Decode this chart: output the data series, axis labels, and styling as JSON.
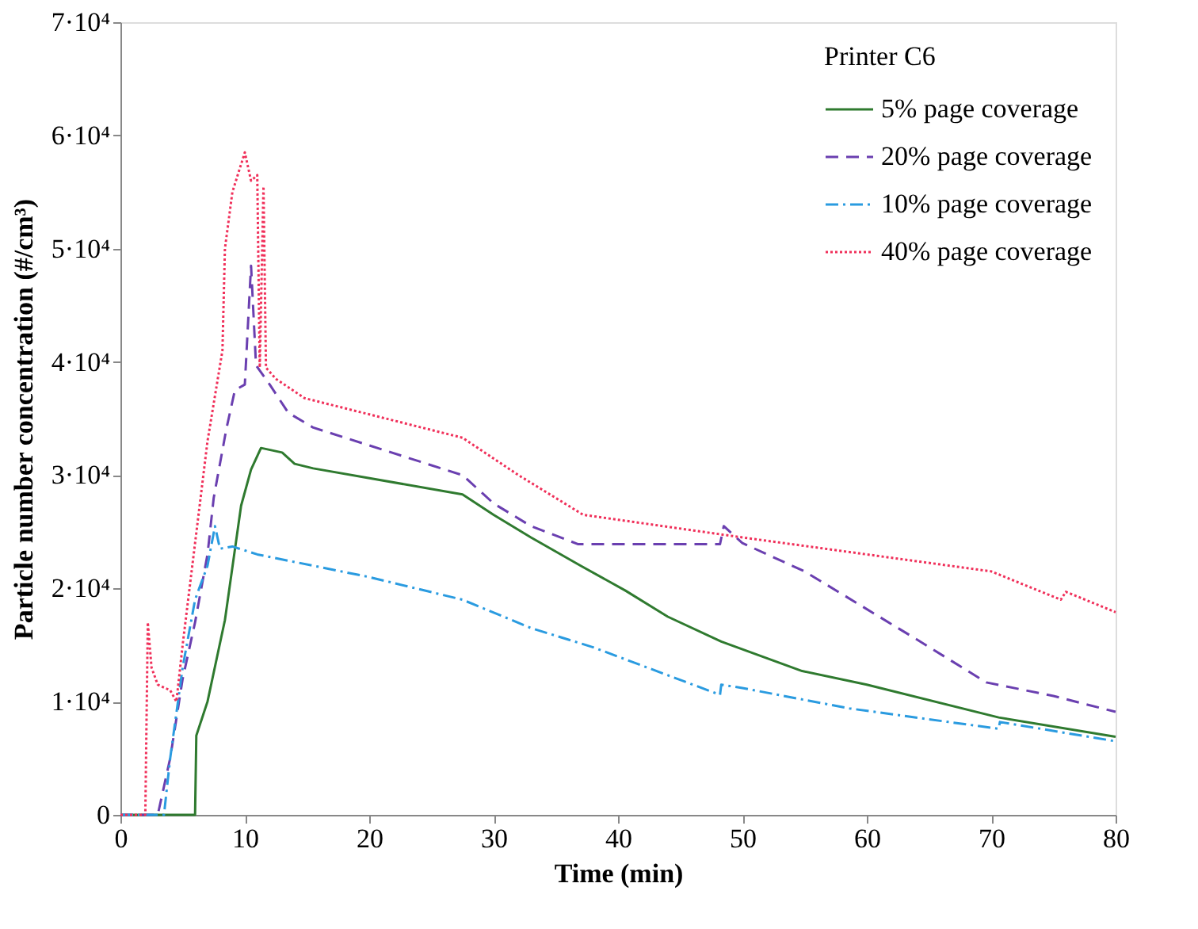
{
  "chart_data": {
    "type": "line",
    "xlabel": "Time (min)",
    "ylabel": "Particle number concentration (#/cm³)",
    "legend_title": "Printer C6",
    "legend": "top right",
    "grid": false,
    "marker": "none",
    "xlim": [
      0,
      80
    ],
    "xticks": [
      0,
      10,
      20,
      30,
      40,
      50,
      60,
      70,
      80
    ],
    "ylim": [
      0,
      70000
    ],
    "yticks": [
      0,
      {
        "value": 10000,
        "label": "1·10⁴"
      },
      {
        "value": 20000,
        "label": "2·10⁴"
      },
      {
        "value": 30000,
        "label": "3·10⁴"
      },
      {
        "value": 40000,
        "label": "4·10⁴"
      },
      {
        "value": 50000,
        "label": "5·10⁴"
      },
      {
        "value": 60000,
        "label": "6·10⁴"
      },
      {
        "value": 70000,
        "label": "7·10⁴"
      }
    ],
    "series": [
      {
        "name": "5% page coverage",
        "color": "#2f7a2f",
        "line_style": "solid",
        "x": [
          0,
          6,
          6.1,
          7,
          8.4,
          9.7,
          10.5,
          11.3,
          13,
          14,
          15.5,
          27.5,
          30,
          33,
          37,
          40.6,
          44,
          48.3,
          54.8,
          60,
          70.6,
          80
        ],
        "values": [
          0,
          0,
          7000,
          10000,
          17200,
          27300,
          30500,
          32400,
          32000,
          31000,
          30600,
          28300,
          26500,
          24500,
          22000,
          19800,
          17500,
          15300,
          12700,
          11500,
          8600,
          6900
        ]
      },
      {
        "name": "20% page coverage",
        "color": "#6a3fb0",
        "line_style": "dashed",
        "x": [
          0,
          3,
          4,
          5,
          6,
          7,
          7.5,
          8.5,
          9.2,
          10,
          10.5,
          10.9,
          12,
          13.5,
          15.5,
          27.5,
          30,
          33,
          36.8,
          48.2,
          48.5,
          50,
          55,
          58,
          64,
          69.6,
          75,
          80
        ],
        "values": [
          0,
          0,
          5000,
          12000,
          17000,
          23000,
          28000,
          34000,
          37500,
          38000,
          48500,
          39700,
          38000,
          35500,
          34200,
          30000,
          27500,
          25500,
          23900,
          23900,
          25500,
          24000,
          21500,
          19500,
          15500,
          11700,
          10500,
          9100
        ]
      },
      {
        "name": "10% page coverage",
        "color": "#2a9be0",
        "line_style": "dashdot",
        "x": [
          0,
          3.5,
          4,
          5,
          6,
          7,
          7.6,
          8,
          9,
          11,
          20,
          27.5,
          33,
          38,
          48.2,
          48.3,
          50,
          58.6,
          70.6,
          70.7,
          80
        ],
        "values": [
          0,
          0,
          5000,
          13000,
          19000,
          22000,
          25500,
          23500,
          23700,
          23000,
          21000,
          19000,
          16500,
          14800,
          10600,
          11500,
          11200,
          9400,
          7600,
          8200,
          6500
        ]
      },
      {
        "name": "40% page coverage",
        "color": "#f0305a",
        "line_style": "dotted",
        "x": [
          0,
          2,
          2.2,
          2.5,
          3,
          4,
          4.5,
          5,
          6,
          7,
          8.2,
          8.4,
          9,
          10,
          10.5,
          11,
          11.2,
          11.5,
          11.7,
          12.5,
          14.8,
          27.5,
          32,
          37.2,
          50,
          70,
          75.6,
          76,
          80
        ],
        "values": [
          0,
          0,
          17000,
          13000,
          11500,
          11000,
          10000,
          15000,
          24000,
          33000,
          41000,
          50000,
          55000,
          58500,
          56000,
          56500,
          39500,
          55500,
          39500,
          38500,
          36800,
          33300,
          30000,
          26500,
          24500,
          21500,
          19000,
          19700,
          17900
        ]
      }
    ]
  }
}
